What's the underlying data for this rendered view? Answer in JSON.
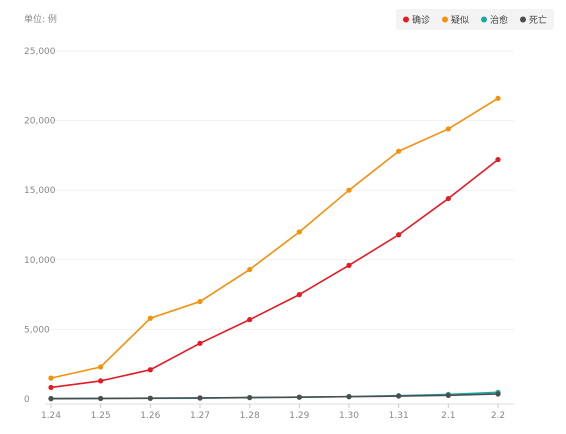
{
  "chart_data": {
    "type": "line",
    "unit_label": "单位: 例",
    "categories": [
      "1.24",
      "1.25",
      "1.26",
      "1.27",
      "1.28",
      "1.29",
      "1.30",
      "1.31",
      "2.1",
      "2.2"
    ],
    "y_ticks": [
      "0",
      "5,000",
      "10,000",
      "15,000",
      "20,000",
      "25,000"
    ],
    "ylim": [
      0,
      25000
    ],
    "grid": true,
    "legend_position": "top-right",
    "series": [
      {
        "name": "确诊",
        "color": "#e31b23",
        "values": [
          830,
          1300,
          2100,
          4000,
          5700,
          7500,
          9600,
          11800,
          14400,
          17200
        ]
      },
      {
        "name": "疑似",
        "color": "#f5900b",
        "values": [
          1500,
          2300,
          5800,
          7000,
          9300,
          12000,
          15000,
          17800,
          19400,
          21600
        ]
      },
      {
        "name": "治愈",
        "color": "#1aa9a6",
        "values": [
          30,
          40,
          50,
          60,
          100,
          130,
          170,
          240,
          330,
          480
        ]
      },
      {
        "name": "死亡",
        "color": "#4d4d4d",
        "values": [
          25,
          40,
          55,
          80,
          105,
          130,
          170,
          210,
          260,
          360
        ]
      }
    ]
  }
}
